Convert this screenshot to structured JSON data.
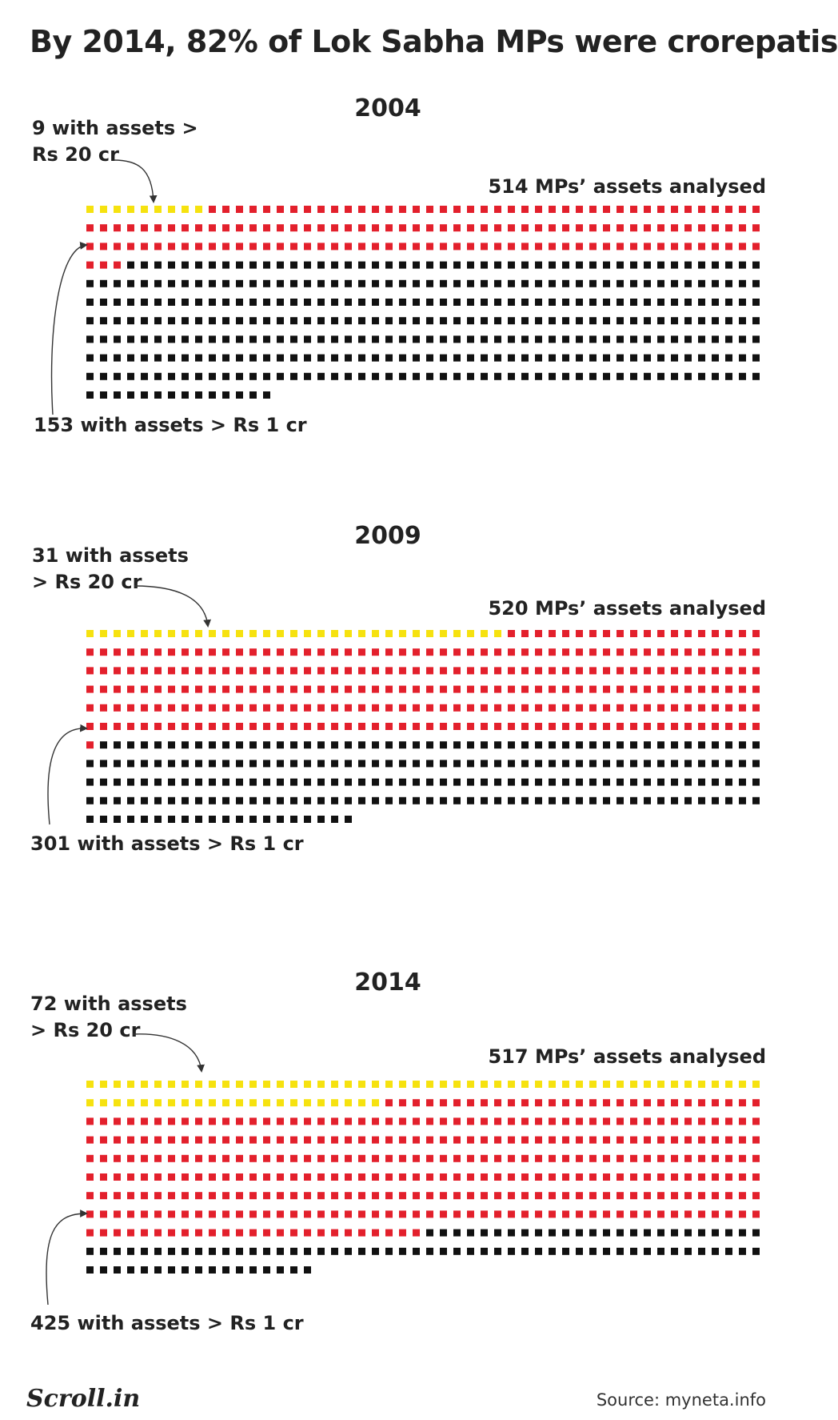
{
  "title": "By 2014, 82% of Lok Sabha MPs were crorepatis",
  "colors": {
    "above_20cr": "#f6e20f",
    "above_1cr": "#e3202c",
    "other": "#111111"
  },
  "chart_data": [
    {
      "type": "waffle",
      "title": "2004",
      "total_label": "514 MPs’ assets analysed",
      "total": 514,
      "above_20cr": 9,
      "above_1cr": 153,
      "above_20cr_label": [
        "9 with assets >",
        "Rs 20 cr"
      ],
      "above_1cr_label": "153 with assets > Rs 1 cr",
      "columns": 50
    },
    {
      "type": "waffle",
      "title": "2009",
      "total_label": "520 MPs’ assets analysed",
      "total": 520,
      "above_20cr": 31,
      "above_1cr": 301,
      "above_20cr_label": [
        "31 with assets",
        "> Rs 20 cr"
      ],
      "above_1cr_label": "301 with assets > Rs 1 cr",
      "columns": 50
    },
    {
      "type": "waffle",
      "title": "2014",
      "total_label": "517 MPs’ assets analysed",
      "total": 517,
      "above_20cr": 72,
      "above_1cr": 425,
      "above_20cr_label": [
        "72 with assets",
        "> Rs 20 cr"
      ],
      "above_1cr_label": "425 with assets > Rs 1 cr",
      "columns": 50
    }
  ],
  "footer": {
    "logo": "Scroll.in",
    "source": "Source: myneta.info"
  }
}
